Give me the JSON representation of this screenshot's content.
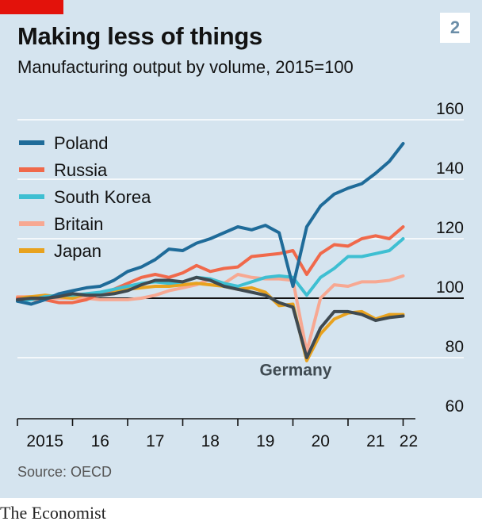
{
  "header": {
    "title": "Making less of things",
    "subtitle": "Manufacturing output by volume, 2015=100",
    "badge": "2"
  },
  "footer": {
    "source": "Source: OECD",
    "brand": "The Economist"
  },
  "colors": {
    "background": "#d5e4ef",
    "brand_red": "#e3120b",
    "poland": "#1f6b99",
    "russia": "#f0694b",
    "south_korea": "#3ebfd2",
    "britain": "#f7a892",
    "japan": "#e8a21e",
    "germany": "#3f4a51"
  },
  "chart_data": {
    "type": "line",
    "title": "Making less of things",
    "subtitle": "Manufacturing output by volume, 2015=100",
    "ylim": [
      60,
      160
    ],
    "yticks": [
      60,
      80,
      100,
      120,
      140,
      160
    ],
    "xlim": [
      2015.0,
      2022.3
    ],
    "xtick_labels": [
      "2015",
      "16",
      "17",
      "18",
      "19",
      "20",
      "21",
      "22"
    ],
    "xtick_label_years": [
      2015.5,
      2016.5,
      2017.5,
      2018.5,
      2019.5,
      2020.5,
      2021.5,
      2022.1
    ],
    "xtick_mark_years": [
      2015,
      2016,
      2017,
      2018,
      2019,
      2020,
      2021,
      2022
    ],
    "grid": true,
    "legend_position": "top-left",
    "annotations": [
      {
        "text": "Germany",
        "x": 2020.05,
        "y": 74
      }
    ],
    "x": [
      2015.0,
      2015.25,
      2015.5,
      2015.75,
      2016.0,
      2016.25,
      2016.5,
      2016.75,
      2017.0,
      2017.25,
      2017.5,
      2017.75,
      2018.0,
      2018.25,
      2018.5,
      2018.75,
      2019.0,
      2019.25,
      2019.5,
      2019.75,
      2020.0,
      2020.25,
      2020.5,
      2020.75,
      2021.0,
      2021.25,
      2021.5,
      2021.75,
      2022.0
    ],
    "series": [
      {
        "name": "Poland",
        "color": "#1f6b99",
        "values": [
          99,
          98,
          99.5,
          101.5,
          102.5,
          103.5,
          104,
          106,
          109,
          110.5,
          113,
          116.5,
          116,
          118.5,
          120,
          122,
          124,
          123,
          124.5,
          122,
          104,
          124,
          131,
          135,
          137,
          138.5,
          142,
          146,
          152
        ]
      },
      {
        "name": "Russia",
        "color": "#f0694b",
        "values": [
          100,
          99.5,
          99.5,
          98.5,
          98.5,
          99.5,
          101.5,
          103,
          105,
          107,
          108,
          107,
          108.5,
          111,
          109,
          110,
          110.5,
          114,
          114.5,
          115,
          116,
          108,
          115,
          118,
          117.5,
          120,
          121,
          120,
          124
        ]
      },
      {
        "name": "South Korea",
        "color": "#3ebfd2",
        "values": [
          99,
          99.5,
          100.5,
          101,
          101,
          101.5,
          102,
          103,
          104,
          105,
          105.5,
          105,
          105.5,
          107,
          106.5,
          105,
          104,
          105.5,
          107,
          107.5,
          107,
          101,
          107,
          110,
          114,
          114,
          115,
          116,
          120
        ]
      },
      {
        "name": "Britain",
        "color": "#f7a892",
        "values": [
          100.5,
          100.5,
          100,
          100,
          100,
          100,
          99.5,
          99.5,
          99.5,
          100,
          101,
          102.5,
          103.5,
          104.5,
          106.5,
          105,
          108,
          107,
          106.5,
          106.5,
          106,
          82,
          100,
          104.5,
          104,
          105.5,
          105.5,
          106,
          107.5
        ]
      },
      {
        "name": "Japan",
        "color": "#e8a21e",
        "values": [
          100,
          100.5,
          101,
          100.5,
          100,
          101.5,
          101.5,
          102,
          103,
          103.5,
          104,
          104,
          104.5,
          105,
          104.5,
          104,
          103,
          103.5,
          102,
          97.5,
          98,
          79,
          88,
          93,
          95,
          95.5,
          93,
          94.5,
          94.5
        ]
      },
      {
        "name": "Germany",
        "color": "#3f4a51",
        "values": [
          99.5,
          100,
          100,
          100.5,
          101.5,
          101,
          101,
          101.5,
          102.5,
          104.5,
          106,
          106,
          105.5,
          107,
          106,
          104,
          103,
          102,
          101,
          98.5,
          97,
          80,
          90,
          95.5,
          95.5,
          94.5,
          92.5,
          93.5,
          94
        ]
      }
    ],
    "legend_entries": [
      "Poland",
      "Russia",
      "South Korea",
      "Britain",
      "Japan"
    ]
  }
}
